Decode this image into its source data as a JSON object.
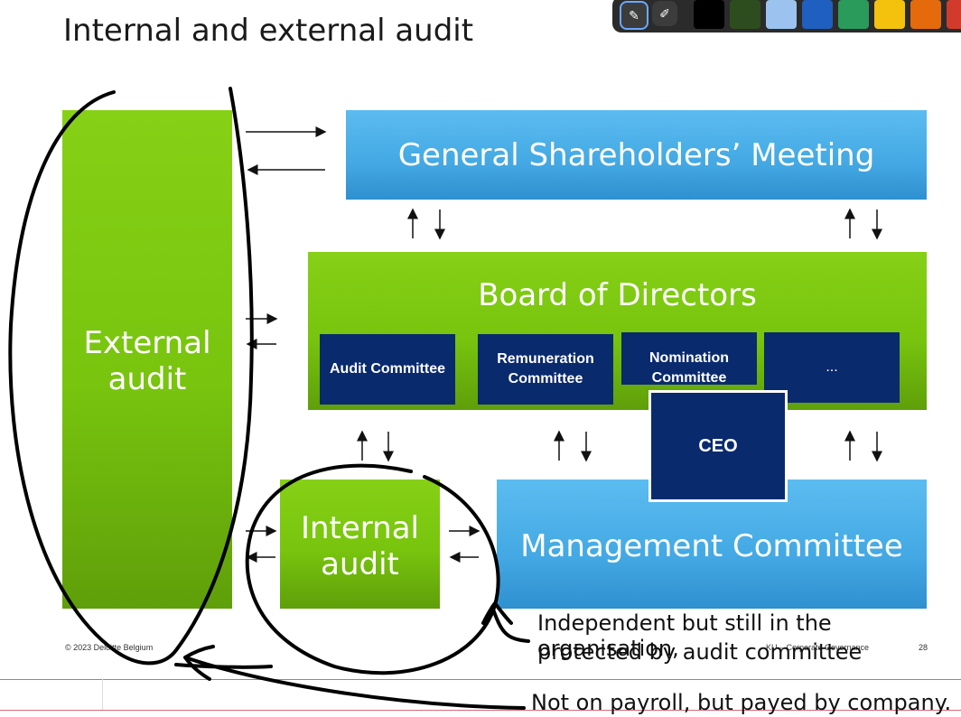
{
  "slide": {
    "title": "Internal and external audit",
    "footer_left": "© 2023 Deloitte Belgium",
    "footer_right": "KU – Corporate Governance",
    "page_number": "28"
  },
  "boxes": {
    "external_audit": "External audit",
    "shareholders": "General Shareholders’ Meeting",
    "board": "Board of Directors",
    "committees": [
      "Audit Committee",
      "Remuneration Committee",
      "Nomination Committee",
      "..."
    ],
    "ceo": "CEO",
    "internal_audit": "Internal audit",
    "management": "Management Committee"
  },
  "annotations": {
    "internal_note_line1": "Independent but still in the organisation,",
    "internal_note_line2": "protected by audit committee",
    "external_note": "Not on payroll, but payed by company."
  },
  "toolbar": {
    "swatch_colors": [
      "#000000",
      "#2e4d1e",
      "#9cc3f0",
      "#1f5fbf",
      "#2a9b5b",
      "#f4c20d",
      "#e56a0b",
      "#d23b2b"
    ]
  }
}
